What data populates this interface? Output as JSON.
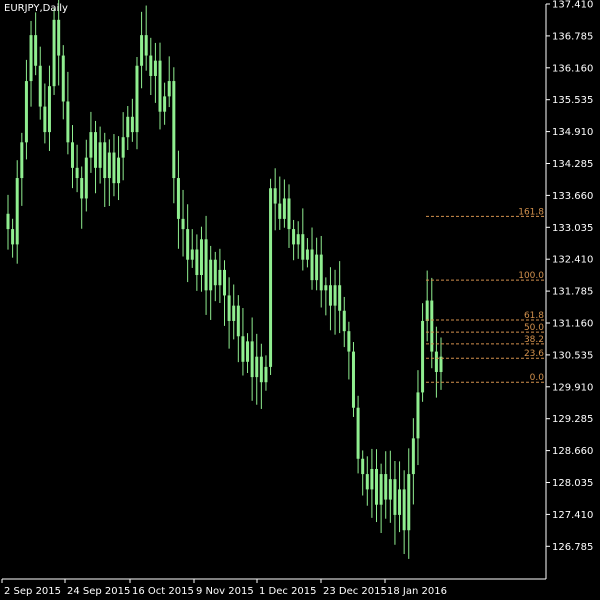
{
  "window": {
    "title": "EURJPY,Daily"
  },
  "colors": {
    "background": "#000000",
    "candle": "#90ee90",
    "axis": "#ffffff",
    "fib": "#d2914d"
  },
  "chart_data": {
    "type": "candlestick",
    "symbol": "EURJPY",
    "timeframe": "Daily",
    "ylim": [
      126.0,
      137.41
    ],
    "y_ticks": [
      "137.410",
      "136.785",
      "136.160",
      "135.535",
      "134.910",
      "134.285",
      "133.660",
      "133.035",
      "132.410",
      "131.785",
      "131.160",
      "130.535",
      "129.910",
      "129.285",
      "128.660",
      "128.035",
      "127.410",
      "126.785"
    ],
    "x_ticks": [
      "2 Sep 2015",
      "24 Sep 2015",
      "16 Oct 2015",
      "9 Nov 2015",
      "1 Dec 2015",
      "23 Dec 2015",
      "18 Jan 2016"
    ],
    "fibonacci": {
      "levels": [
        "161.8",
        "100.0",
        "61.8",
        "50.0",
        "38.2",
        "23.6",
        "0.0"
      ],
      "values": [
        133.25,
        132.0,
        131.22,
        130.98,
        130.75,
        130.47,
        130.0
      ]
    },
    "close_series": [
      133.0,
      132.7,
      134.0,
      134.7,
      135.9,
      136.8,
      136.2,
      135.4,
      134.9,
      135.8,
      137.1,
      136.4,
      135.5,
      134.7,
      134.2,
      134.0,
      133.6,
      134.4,
      134.9,
      134.2,
      134.7,
      134.0,
      134.5,
      133.9,
      134.4,
      134.8,
      135.2,
      134.9,
      136.2,
      136.8,
      136.4,
      136.0,
      136.3,
      135.3,
      135.6,
      135.9,
      134.0,
      133.2,
      133.0,
      132.4,
      132.6,
      132.1,
      132.8,
      131.8,
      132.4,
      131.9,
      132.2,
      131.7,
      131.2,
      131.5,
      130.9,
      130.4,
      130.8,
      130.1,
      130.5,
      130.0,
      130.3,
      133.8,
      133.5,
      133.2,
      133.6,
      133.0,
      132.7,
      132.9,
      132.4,
      132.6,
      132.0,
      132.5,
      131.8,
      131.9,
      131.5,
      131.9,
      131.4,
      131.0,
      130.6,
      129.5,
      128.5,
      128.2,
      127.9,
      128.3,
      127.6,
      128.2,
      127.7,
      128.1,
      127.4,
      127.9,
      127.1,
      128.2,
      128.9,
      129.8,
      131.2,
      131.6,
      130.6,
      130.2,
      130.5
    ]
  }
}
